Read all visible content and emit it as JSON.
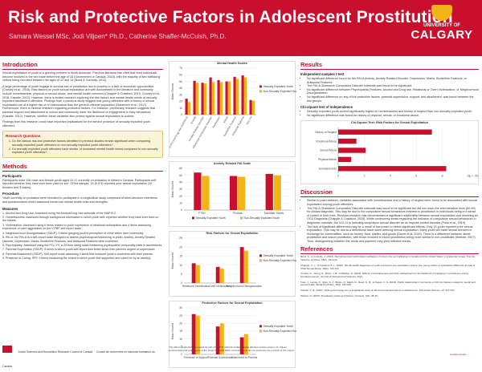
{
  "header": {
    "title": "Risk and Protective Factors in Adolescent Prostitution",
    "authors": "Samara Wessel MSc, Jodi Viljoen* Ph.D., Catherine Shaffer-McCuish, Ph.D.",
    "logo_line1": "UNIVERSITY OF",
    "logo_line2": "CALGARY"
  },
  "intro": {
    "title": "Introduction",
    "p1": "Sexual exploitation of youth is a growing concern in North American. Previous literature has cited that most individuals become involved in the sex trade before the age of 18 (Government of Canada, 2015), with the majority of sex trafficking victims being recruited between the ages of 12 and 14 (Bond & Connolly, 2013).",
    "p2": "A large percentage of youth engage in survival sex or prostitution due to poverty or a lack of economic opportunities (Crosley et al., 2016). Risk factors for youth sexual exploitation are well documented in the literature and commonly include homelessness, physical or sexual abuse, and mental health concerns (Chapple & Crawford, 2019; Cronley et al., 2016; Kaestle, 2012). However, there is limited research exploring the risk factors and mental health needs of sexually exploited adolescent offenders. Findings from a previous study suggest that young offenders with a history of sexual exploitation are at a higher risk of re-victimization than the general offender population (Naramore et al., 2017). Furthermore, there is minimal research regarding protective factors. For instance, preliminary research suggests that parental support and attachment to school and community lower the likelihood of engagement in risky behaviours (Kaestle, 2012). However, whether these variables also protect against sexual exploitation is unclear.",
    "p3": "Findings from this research could have important implications for the service provision of sexually exploited youth offenders."
  },
  "questions": {
    "title": "Research Questions",
    "items": [
      "Do the various risk and protective factors identified in previous studies remain significant when comparing sexually exploited youth offenders to non-sexually exploited youth offenders?",
      "Do sexually exploited youth offenders have similar, or increased mental health needs compared to non-sexually exploited youth offenders?"
    ]
  },
  "methods": {
    "title": "Methods",
    "participants_h": "Participants",
    "participants": "Participants were 158 male and female youth aged 12-17 currently on probation in Western Canada. Participants self-reported whether they have ever been paid for sex. Of the sample, 15 (9.5%) reported prior sexual exploitation (10 females and 5 males).",
    "procedure_h": "Procedure",
    "procedure": "Youth currently on probation were recruited to participate in a longitudinal study comprised of semi-structure interviews and questionnaires which assessed numerous mental health risks and strengths.",
    "measures_h": "Measures",
    "measures": [
      "1. Alcohol and Drug Use: Assessed using the Alcohol/Drug Use subscale of the MAPSI-2.",
      "2. Homelessness: Assessed through background information in which youth self- reported whether they have ever lived on the streets.",
      "3. Victimization: Assessed using 6 items related to youth experience of relational victimization and 4 items assessing experience of overt aggression on the V-PBF self-report scale.",
      "4. Neighbourhood Disorganization (SSDP): 5 items gauging youth's perception of crime within their community.",
      "5. PAI-A: the PAI-A is a self-report scale designed to assess psychological functioning in youth. Anxiety, Anxiety Related Disorder, Depression, Mania, Borderline Features, and Antisocial Features were examined.",
      "6. Psychopathy: Assessed using the PCL:YV, a 20-item rating scale measuring psychopathic personality traits in adolescents.",
      "7. Parental Supervision (SSDP): 8 items in which youth self-report their belief about their parent's degree of supervision.",
      "8. Parental Attachment (SSDP): Self-report scale assessing 4 items that measure youth's closeness with their parents.",
      "9. Presence of Caring: IPPI: 9 items measuring the extent to which youth feel supported and cared for by an adult(s)."
    ]
  },
  "funder": {
    "name": "Social Sciences and Humanities Research Council of Canada",
    "name_fr": "Conseil de recherches en sciences humaines du Canada"
  },
  "footnote": "The CRxxx supported this project as part of the first author's undergraduate directed studies project. Dr. Viljoen secured data and instruments of the project for SPD 4601 conference and did not supervise the conduct of the project.",
  "results": {
    "title": "Results",
    "ttest_h": "Independent samples t-test",
    "bullets": [
      "No significant difference found for the PAI-A Anxiety, Anxiety Related Disorder, Depression, Mania, Borderline Features, or Antisocial Features.",
      "The PAI-A Obsessive Compulsive Disorder subscale was found to be significant.",
      "No significant difference between Psychopathic Features, Alcohol and Drug use, Relational or Overt Victimization, or Neighborhood Disorganization.",
      "No significant difference on any of the protective factors, parental supervision, support, and attachment, was found between the two groups."
    ],
    "chi_h": "Chi-square test of independence",
    "chi_bullets": [
      "Sexually exploited youth scored significantly higher on homelessness and history of neglect than non-sexually exploited youth.",
      "No significant difference was found for history of physical, sexual, or emotional abuse."
    ]
  },
  "discussion": {
    "title": "Discussion",
    "bullets": [
      "Similar to past research, variables associated with homelessness and a history of neglect were found to be associated with sexual exploitation among youth offenders.",
      "The PAI-A Obsessive Compulsive Disorder subscale was found to be significant but did not reach the mild elevation level (60-69) for clinical diagnosis. This may be due to the compulsive sexual behaviours inherent in prostitution or individuals being in a sense of control in their lives. Previous research has demonstrated a significant relationship between sexual exploitation and receiving an OCD Diagnosis (Chapple & Crawford, 2019). While controversy exists regarding the inclusion of compulsive sexual behaviours in diagnostic manuals, the ICD-11 is including compulsive sexual disorder as an impulse-control disorder (Fuss et al., 2019).",
      "The lack of significant differences may be a result of low power to detect significant effects. Only 15 youth reported prior sexual exploitation. This may be due to a definitional issue when defining sexual exploitation. Many youth will trade sexual services in exchange for commodities, such as money, food, shelter, and goods (Dorne et al, 2016). There is a difference between street prostitution and indoor prostitution, with those involved in indoor prostitution being more similar to non-prostitutes (Weitzer, 2007). Thus, distinguishing between the mode and payment may yield different results."
    ]
  },
  "references": {
    "title": "References",
    "items": [
      "Bond, S., & Connolly, J. (2013). Recruitment and victimization pathways of minors into sex trafficking in Canada and the United States: A systematic review. Trauma, Violence, & Abuse, 18(2), 194-212.",
      "Chapple, C. L., & Crawford, B. L. (2019). Mental health diagnoses of youth involved in sex exploitation victims: Are young victims of exploitation different? Journal of Child Sexual Abuse, 28(6), 701-720.",
      "Cronley, C., Jeong, S., Davis, J. B., & Madden, E. (2016). Effects of homelessness and child maltreatment on the likelihood of engaging in survival sex among homeless women. Journal of Interpersonal Violence, 33(1).",
      "Fuss, J., Lemay, K., Stein, D. J., Briken, P., Jakob, R., Reed, G. M., & Kogan, C. S. (2019). Public stakeholders' comments on ICD-11 chapters related to mental and sexual health. World Psychiatry, 18(2), 233-235.",
      "Kaestle, C. E. (2012). Selling and buying sex: A longitudinal study of risk and protective factors in adolescence. Prevention Science, 13, 314-322.",
      "Weitzer, R. (2007). Prostitution: Facts and fictions. Contexts, 6(4), 28-33."
    ]
  },
  "contact": "Contact Details",
  "chart_data": [
    {
      "type": "bar",
      "title": "Mental Health Scales",
      "categories": [
        "Alcohol and Drug Use (MAPSI-2)",
        "Anxiety",
        "Anxiety Related Disorder",
        "Obsessive Compulsive Disorder",
        "Depression",
        "Mania",
        "Borderline Features",
        "Antisocial Features",
        "PCL:YV"
      ],
      "ylabel": "Mean Scores",
      "ylim": [
        0,
        70
      ],
      "series": [
        {
          "name": "Sexually Exploited Youth",
          "values": [
            24,
            51,
            48,
            56,
            52,
            50,
            57,
            59,
            22
          ]
        },
        {
          "name": "Non-Sexually Exploited Youth",
          "values": [
            19,
            48,
            47,
            49,
            49,
            50,
            54,
            56,
            21
          ]
        }
      ],
      "color_a": "#c8102e",
      "color_b": "#f2b319"
    },
    {
      "type": "bar",
      "title": "Anxiety Related PAI Scale",
      "categories": [
        "PTSD",
        "Phobias",
        "Traumatic Stress"
      ],
      "ylabel": "Mean Scores",
      "ylim": [
        0,
        60
      ],
      "series": [
        {
          "name": "Sexually Exploited Youth",
          "values": [
            54,
            49,
            52
          ]
        },
        {
          "name": "Non-Sexually Exploited Youth",
          "values": [
            49,
            48,
            50
          ]
        }
      ],
      "color_a": "#c8102e",
      "color_b": "#f2b319"
    },
    {
      "type": "bar",
      "title": "Risk Factors for Sexual Exploitation",
      "categories": [
        "Relational Victimization",
        "Overt Victimization",
        "Neighborhood Disorganization"
      ],
      "ylabel": "Mean Scores",
      "ylim": [
        0,
        25
      ],
      "series": [
        {
          "name": "Sexually Exploited Youth",
          "values": [
            11,
            9,
            20
          ]
        },
        {
          "name": "Non-Sexually Exploited Youth",
          "values": [
            10,
            8,
            18
          ]
        }
      ],
      "color_a": "#c8102e",
      "color_b": "#f2b319"
    },
    {
      "type": "bar",
      "title": "Protective Factors for Sexual Exploitation",
      "categories": [
        "Presence of Support",
        "Parental Supervision",
        "Attachment to Parents"
      ],
      "ylabel": "Mean Scores",
      "ylim": [
        0,
        30
      ],
      "series": [
        {
          "name": "Sexually Exploited Youth",
          "values": [
            26,
            18,
            11
          ]
        },
        {
          "name": "Non-Sexually Exploited Youth",
          "values": [
            25,
            20,
            13
          ]
        }
      ],
      "color_a": "#c8102e",
      "color_b": "#f2b319"
    },
    {
      "type": "bar",
      "orientation": "horizontal",
      "title": "Chi-Square Test: Risk Factors for Sexual Exploitation",
      "categories": [
        "History of Neglect",
        "Emotional Abuse",
        "Sexual Abuse",
        "Physical Abuse",
        "Homelessness"
      ],
      "xlim": [
        0,
        10
      ],
      "x_ticks": [
        "0",
        "2",
        "4",
        "6",
        "8",
        "10"
      ],
      "values": [
        7.2,
        1.4,
        2.1,
        1.0,
        8.3
      ],
      "note": "p < .05",
      "color": "#c8102e"
    }
  ]
}
